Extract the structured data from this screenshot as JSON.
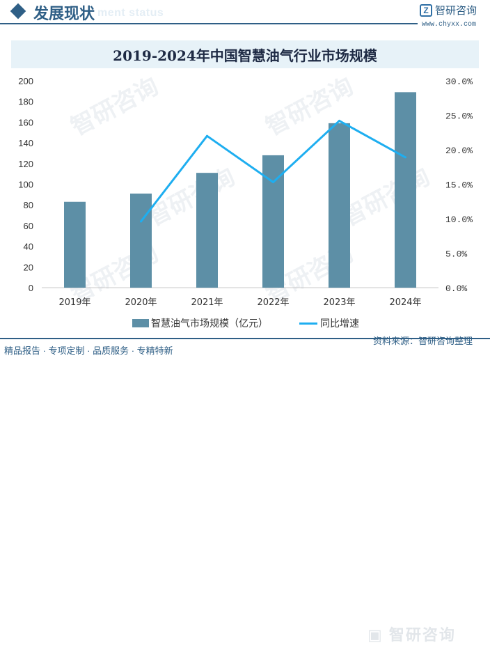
{
  "header": {
    "section_title": "发展现状",
    "section_subtitle": "ment status",
    "brand_name": "智研咨询",
    "brand_site": "www.chyxx.com"
  },
  "colors": {
    "bar": "#5d8fa6",
    "line": "#1eaef0",
    "accent": "#2f5f86"
  },
  "chart_data": {
    "type": "bar",
    "title": "2019-2024年中国智慧油气行业市场规模",
    "categories": [
      "2019年",
      "2020年",
      "2021年",
      "2022年",
      "2023年",
      "2024年"
    ],
    "series": [
      {
        "name": "智慧油气市场规模（亿元）",
        "type": "bar",
        "axis": "left",
        "values": [
          83,
          91,
          111,
          128,
          159,
          189
        ]
      },
      {
        "name": "同比增速",
        "type": "line",
        "axis": "right",
        "values": [
          null,
          9.6,
          22.0,
          15.3,
          24.2,
          18.9
        ]
      }
    ],
    "ylim": [
      0,
      200
    ],
    "yticks": [
      "0",
      "20",
      "40",
      "60",
      "80",
      "100",
      "120",
      "140",
      "160",
      "180",
      "200"
    ],
    "y2lim": [
      0,
      30
    ],
    "y2ticks": [
      "0.0%",
      "5.0%",
      "10.0%",
      "15.0%",
      "20.0%",
      "25.0%",
      "30.0%"
    ],
    "legend_position": "bottom"
  },
  "footer": {
    "slogan": "精品报告 · 专项定制 · 品质服务 · 专精特新",
    "source": "资料来源：智研咨询整理"
  },
  "watermark": "智研咨询"
}
